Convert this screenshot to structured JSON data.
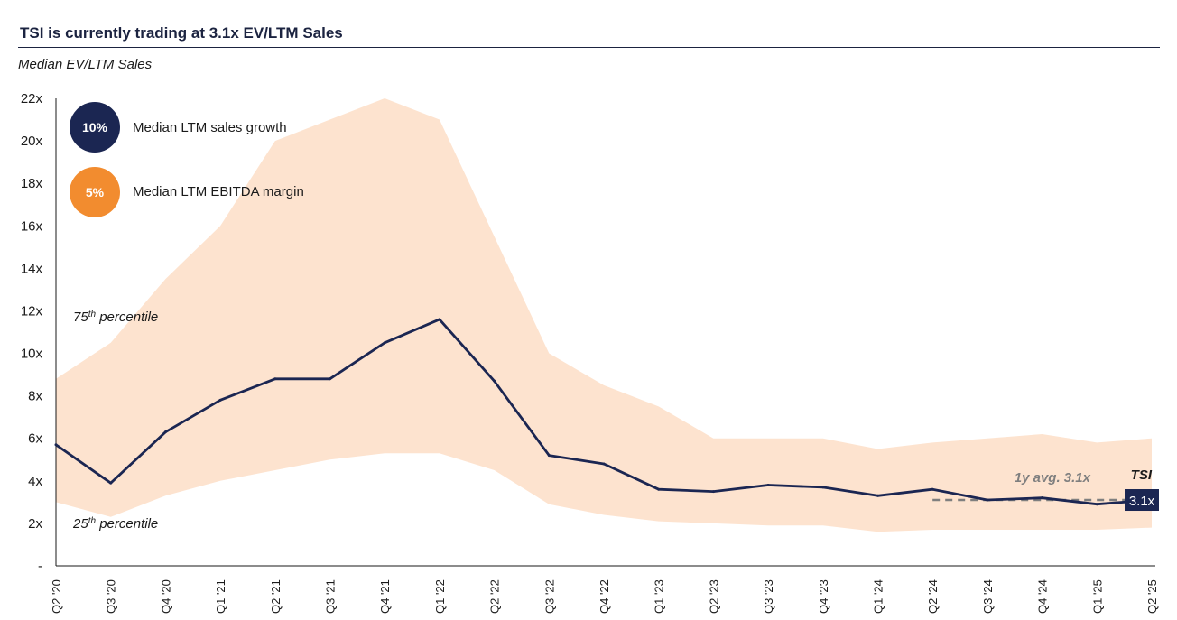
{
  "header": {
    "title": "TSI is currently trading at 3.1x EV/LTM Sales",
    "subtitle": "Median EV/LTM Sales"
  },
  "badges": [
    {
      "value": "10%",
      "label": "Median LTM sales growth",
      "color": "#1b2652"
    },
    {
      "value": "5%",
      "label": "Median LTM EBITDA margin",
      "color": "#f28c2f"
    }
  ],
  "colors": {
    "band": "#fde3cf",
    "line": "#1b2652",
    "avg_line": "#7f7f7f",
    "current_label_bg": "#1b2652"
  },
  "chart_data": {
    "type": "area",
    "ylim": [
      0,
      22
    ],
    "y_ticks": [
      "-",
      "2x",
      "4x",
      "6x",
      "8x",
      "10x",
      "12x",
      "14x",
      "16x",
      "18x",
      "20x",
      "22x"
    ],
    "x_tick_labels": [
      "Q2 '20",
      "Q3 '20",
      "Q4 '20",
      "Q1 '21",
      "Q2 '21",
      "Q3 '21",
      "Q4 '21",
      "Q1 '22",
      "Q2 '22",
      "Q3 '22",
      "Q4 '22",
      "Q1 '23",
      "Q2 '23",
      "Q3 '23",
      "Q4 '23",
      "Q1 '24",
      "Q2 '24",
      "Q3 '24",
      "Q4 '24",
      "Q1 '25",
      "Q2 '25"
    ],
    "x": [
      "Q2 '20",
      "Q3 '20",
      "Q4 '20",
      "Q1 '21",
      "Q2 '21",
      "Q3 '21",
      "Q4 '21",
      "Q1 '22",
      "Q2 '22",
      "Q3 '22",
      "Q4 '22",
      "Q1 '23",
      "Q2 '23",
      "Q3 '23",
      "Q4 '23",
      "Q1 '24",
      "Q2 '24",
      "Q3 '24",
      "Q4 '24",
      "Q1 '25",
      "Q2 '25"
    ],
    "series": [
      {
        "name": "TSI",
        "role": "median",
        "values": [
          5.7,
          3.9,
          6.3,
          7.8,
          8.8,
          8.8,
          10.5,
          11.6,
          8.7,
          5.2,
          4.8,
          3.6,
          3.5,
          3.8,
          3.7,
          3.3,
          3.6,
          3.1,
          3.2,
          2.9,
          3.1
        ]
      },
      {
        "name": "75th percentile",
        "role": "upper",
        "values": [
          8.8,
          10.5,
          13.5,
          16.0,
          20.0,
          21.0,
          22.0,
          21.0,
          15.5,
          10.0,
          8.5,
          7.5,
          6.0,
          6.0,
          6.0,
          5.5,
          5.8,
          6.0,
          6.2,
          5.8,
          6.0
        ]
      },
      {
        "name": "25th percentile",
        "role": "lower",
        "values": [
          3.0,
          2.3,
          3.3,
          4.0,
          4.5,
          5.0,
          5.3,
          5.3,
          4.5,
          2.9,
          2.4,
          2.1,
          2.0,
          1.9,
          1.9,
          1.6,
          1.7,
          1.7,
          1.7,
          1.7,
          1.8
        ]
      }
    ],
    "band_labels": {
      "upper": {
        "prefix": "75",
        "sup": "th",
        "suffix": " percentile"
      },
      "lower": {
        "prefix": "25",
        "sup": "th",
        "suffix": " percentile"
      }
    },
    "avg_label": "1y avg. 3.1x",
    "avg_value": 3.1,
    "current_label": "3.1x",
    "current_value": 3.1,
    "series_label": "TSI",
    "grid": false,
    "legend": "none"
  }
}
